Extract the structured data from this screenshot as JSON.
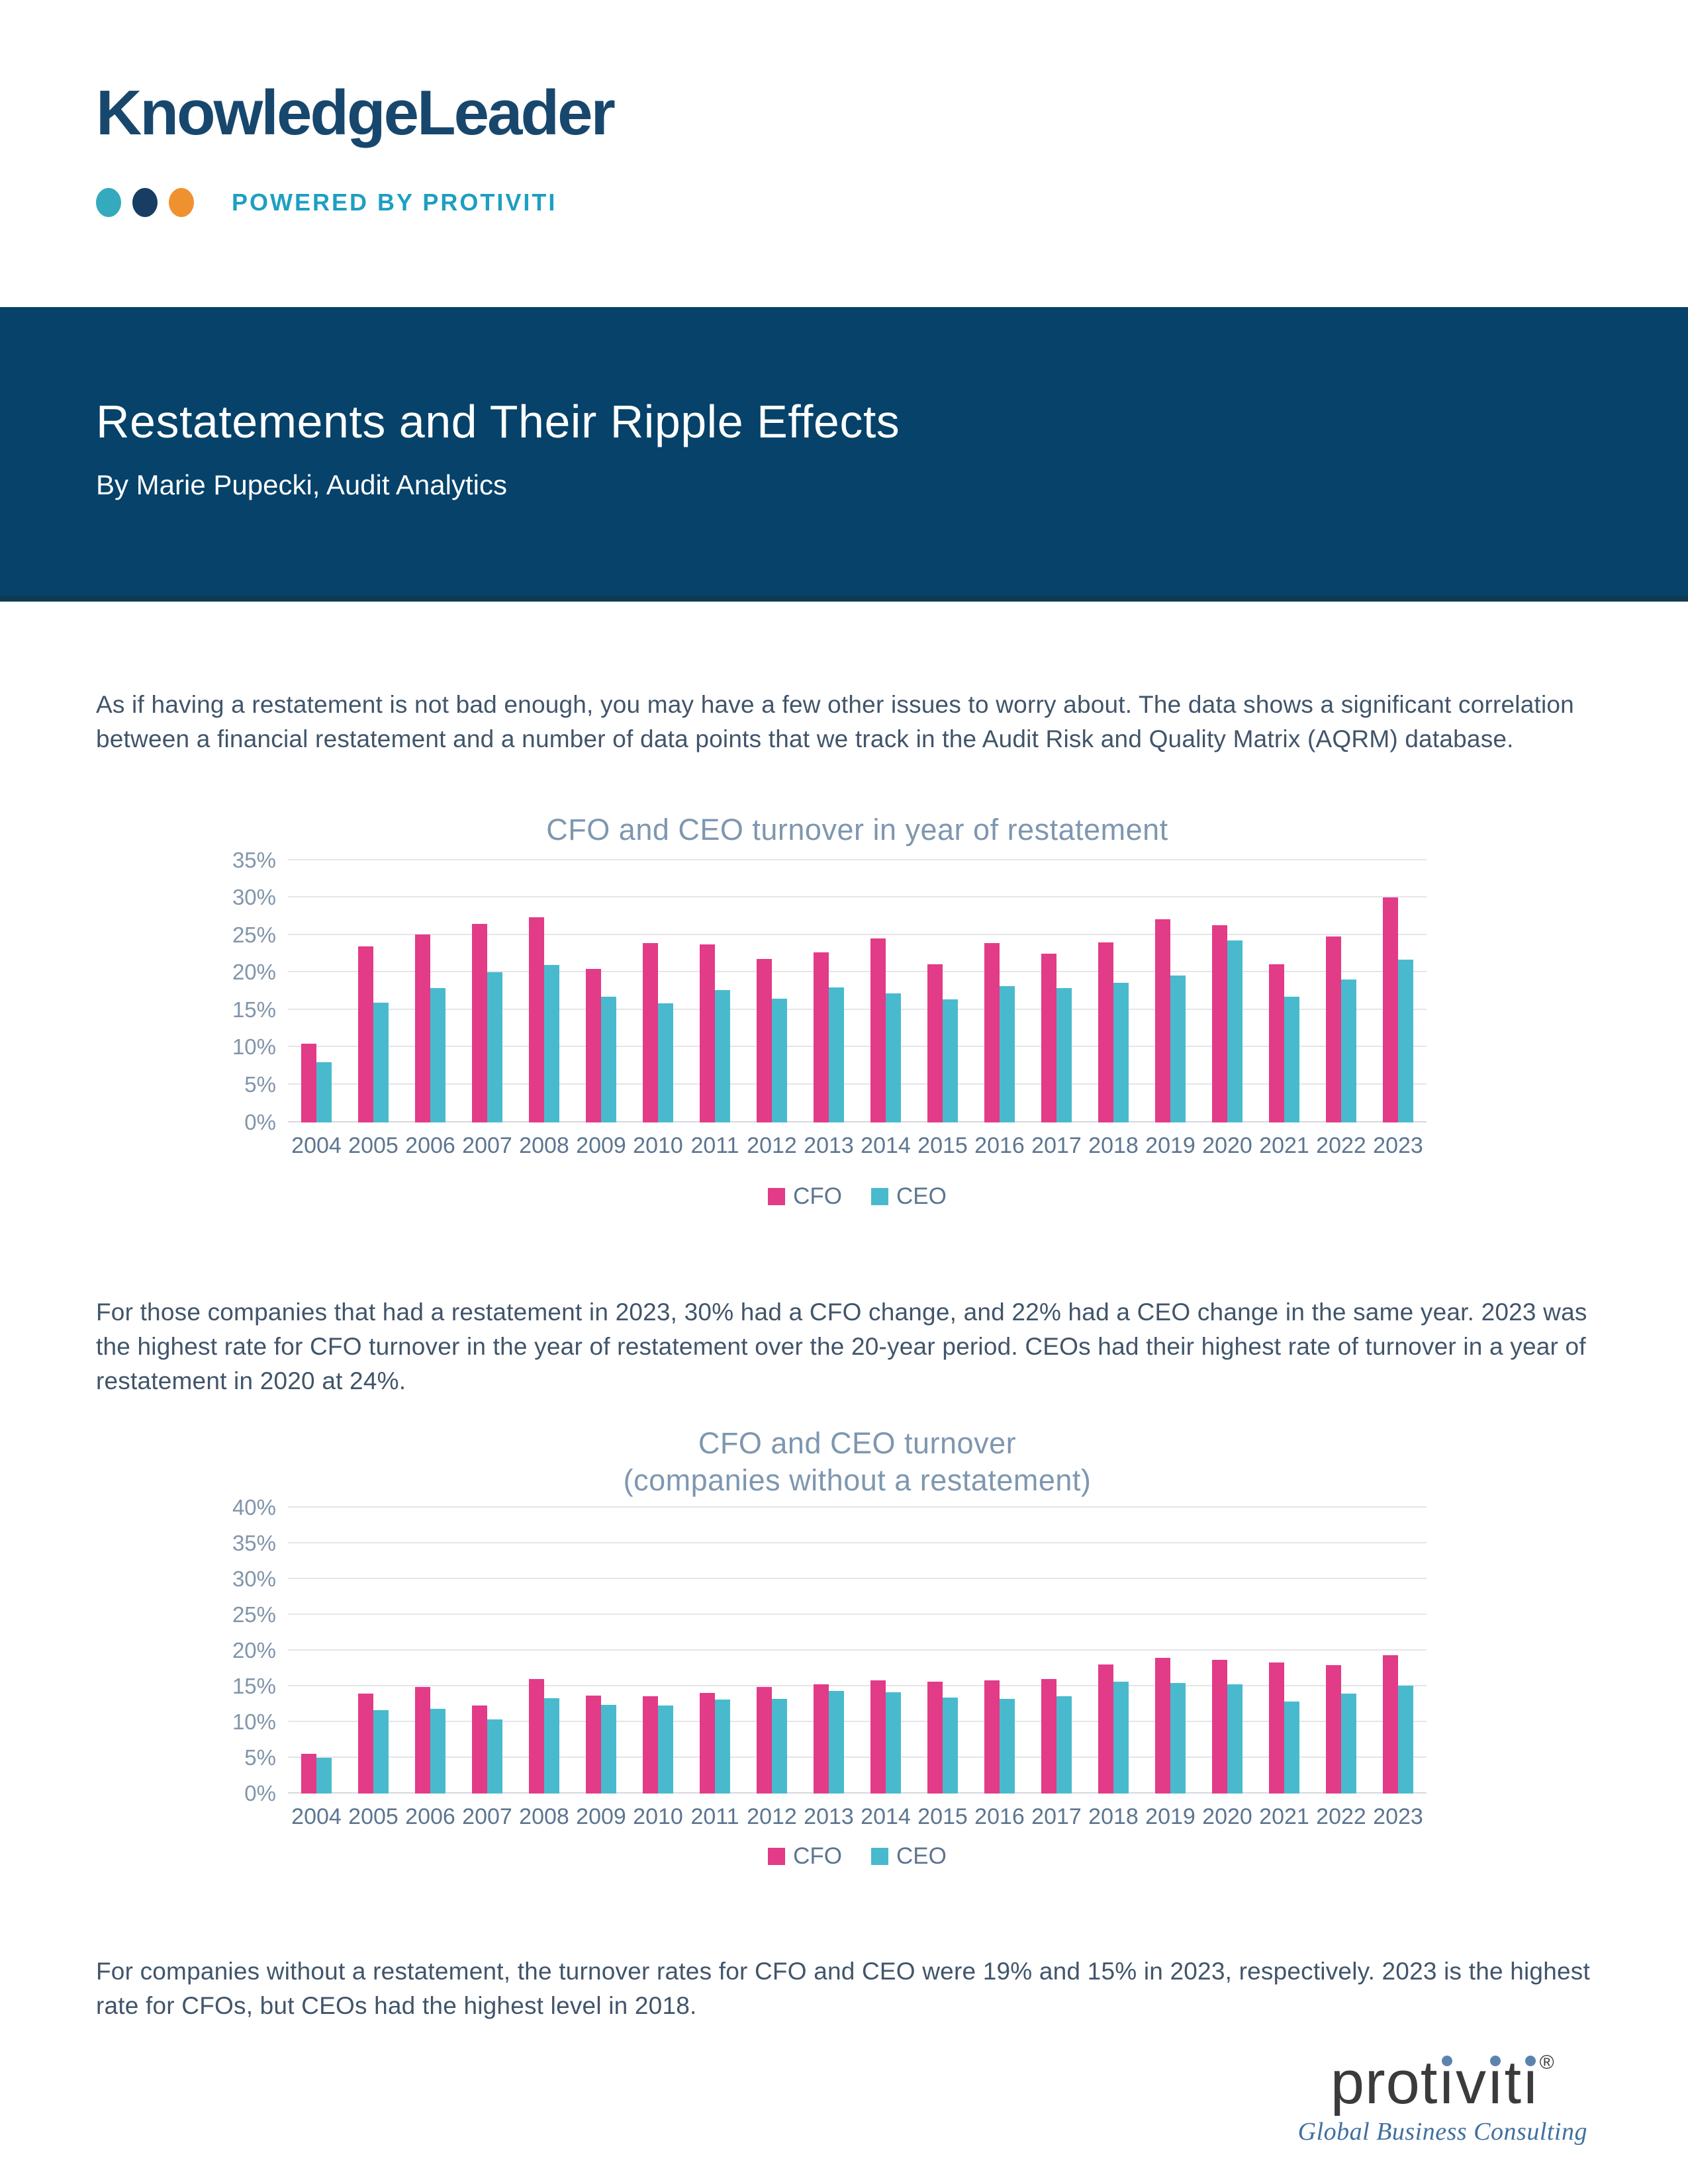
{
  "header": {
    "brand": "KnowledgeLeader",
    "tagline": "POWERED BY PROTIVITI"
  },
  "banner": {
    "title": "Restatements and Their Ripple Effects",
    "byline": "By Marie Pupecki, Audit Analytics"
  },
  "paragraphs": {
    "intro": "As if having a restatement is not bad enough, you may have a few other issues to worry about. The data shows a significant correlation between a financial restatement and a number of data points that we track in the Audit Risk and Quality Matrix (AQRM) database.",
    "mid": "For those companies that had a restatement in 2023, 30% had a CFO change, and 22% had a CEO change in the same year. 2023 was the highest rate for CFO turnover in the year of restatement over the 20-year period.  CEOs had their highest rate of turnover in a year of restatement in 2020 at 24%.",
    "footer": "For companies without a restatement, the turnover rates for CFO and CEO were 19% and 15% in 2023, respectively. 2023 is the highest rate for CFOs, but CEOs had the highest level in 2018."
  },
  "colors": {
    "banner_background": "#06426a",
    "brand_navy": "#18476d",
    "powered_teal": "#1d9fc1",
    "dot_teal": "#35a9be",
    "dot_navy": "#173d63",
    "dot_orange": "#f09130",
    "body_text": "#41556a",
    "chart_title": "#7e97af",
    "axis_label": "#5c7590",
    "series": {
      "CFO": "#e23b87",
      "CEO": "#49bacd"
    }
  },
  "chart_data": [
    {
      "type": "bar",
      "title": "CFO and CEO turnover in year of restatement",
      "categories": [
        "2004",
        "2005",
        "2006",
        "2007",
        "2008",
        "2009",
        "2010",
        "2011",
        "2012",
        "2013",
        "2014",
        "2015",
        "2016",
        "2017",
        "2018",
        "2019",
        "2020",
        "2021",
        "2022",
        "2023"
      ],
      "series": [
        {
          "name": "CFO",
          "values": [
            10.5,
            23.5,
            25.1,
            26.5,
            27.4,
            20.5,
            23.9,
            23.7,
            21.8,
            22.7,
            24.5,
            21.1,
            23.9,
            22.5,
            24.0,
            27.1,
            26.3,
            21.1,
            24.8,
            30.0
          ]
        },
        {
          "name": "CEO",
          "values": [
            8.0,
            16.0,
            17.9,
            20.0,
            21.0,
            16.8,
            15.9,
            17.6,
            16.5,
            18.0,
            17.2,
            16.4,
            18.2,
            17.9,
            18.6,
            19.6,
            24.3,
            16.8,
            19.1,
            21.7
          ]
        }
      ],
      "xlabel": "",
      "ylabel": "",
      "ylim": [
        0,
        35
      ],
      "ytick_step": 5,
      "yticks": [
        "0%",
        "5%",
        "10%",
        "15%",
        "20%",
        "25%",
        "30%",
        "35%"
      ],
      "grid": true,
      "legend_position": "bottom"
    },
    {
      "type": "bar",
      "title": "CFO and CEO turnover",
      "subtitle": "(companies without a restatement)",
      "categories": [
        "2004",
        "2005",
        "2006",
        "2007",
        "2008",
        "2009",
        "2010",
        "2011",
        "2012",
        "2013",
        "2014",
        "2015",
        "2016",
        "2017",
        "2018",
        "2019",
        "2020",
        "2021",
        "2022",
        "2023"
      ],
      "series": [
        {
          "name": "CFO",
          "values": [
            5.5,
            13.9,
            14.9,
            12.3,
            16.0,
            13.7,
            13.6,
            14.0,
            14.9,
            15.2,
            15.8,
            15.6,
            15.8,
            16.0,
            18.0,
            18.9,
            18.7,
            18.3,
            17.9,
            19.3
          ]
        },
        {
          "name": "CEO",
          "values": [
            5.0,
            11.6,
            11.8,
            10.3,
            13.3,
            12.4,
            12.3,
            13.1,
            13.2,
            14.3,
            14.1,
            13.4,
            13.2,
            13.6,
            15.6,
            15.4,
            15.2,
            12.8,
            13.9,
            15.1
          ]
        }
      ],
      "xlabel": "",
      "ylabel": "",
      "ylim": [
        0,
        40
      ],
      "ytick_step": 5,
      "yticks": [
        "0%",
        "5%",
        "10%",
        "15%",
        "20%",
        "25%",
        "30%",
        "35%",
        "40%"
      ],
      "grid": true,
      "legend_position": "bottom"
    }
  ],
  "footer_logo": {
    "brand": "protiviti",
    "registered": "®",
    "tagline": "Global Business Consulting"
  }
}
